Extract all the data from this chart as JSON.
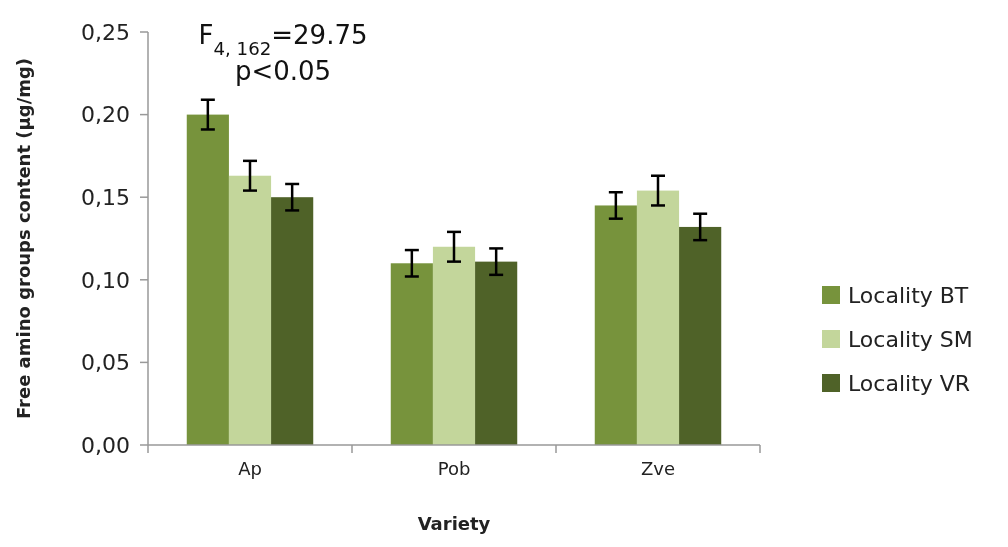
{
  "chart_data": {
    "type": "bar",
    "xlabel": "Variety",
    "ylabel": "Free amino groups content (µg/mg)",
    "categories": [
      "Ap",
      "Pob",
      "Zve"
    ],
    "series": [
      {
        "name": "Locality BT",
        "color": "#77933c",
        "values": [
          0.2,
          0.11,
          0.145
        ],
        "errors": [
          0.009,
          0.008,
          0.008
        ]
      },
      {
        "name": "Locality SM",
        "color": "#c3d69b",
        "values": [
          0.163,
          0.12,
          0.154
        ],
        "errors": [
          0.009,
          0.009,
          0.009
        ]
      },
      {
        "name": "Locality VR",
        "color": "#4f6228",
        "values": [
          0.15,
          0.111,
          0.132
        ],
        "errors": [
          0.008,
          0.008,
          0.008
        ]
      }
    ],
    "ylim": [
      0,
      0.25
    ],
    "yticks": [
      {
        "value": 0,
        "label": "0,00"
      },
      {
        "value": 0.05,
        "label": "0,05"
      },
      {
        "value": 0.1,
        "label": "0,10"
      },
      {
        "value": 0.15,
        "label": "0,15"
      },
      {
        "value": 0.2,
        "label": "0,20"
      },
      {
        "value": 0.25,
        "label": "0,25"
      }
    ],
    "annotations": [
      "F$_{4, 162}$=29.75",
      "p<0.05"
    ],
    "legend": "right",
    "grid": false
  }
}
